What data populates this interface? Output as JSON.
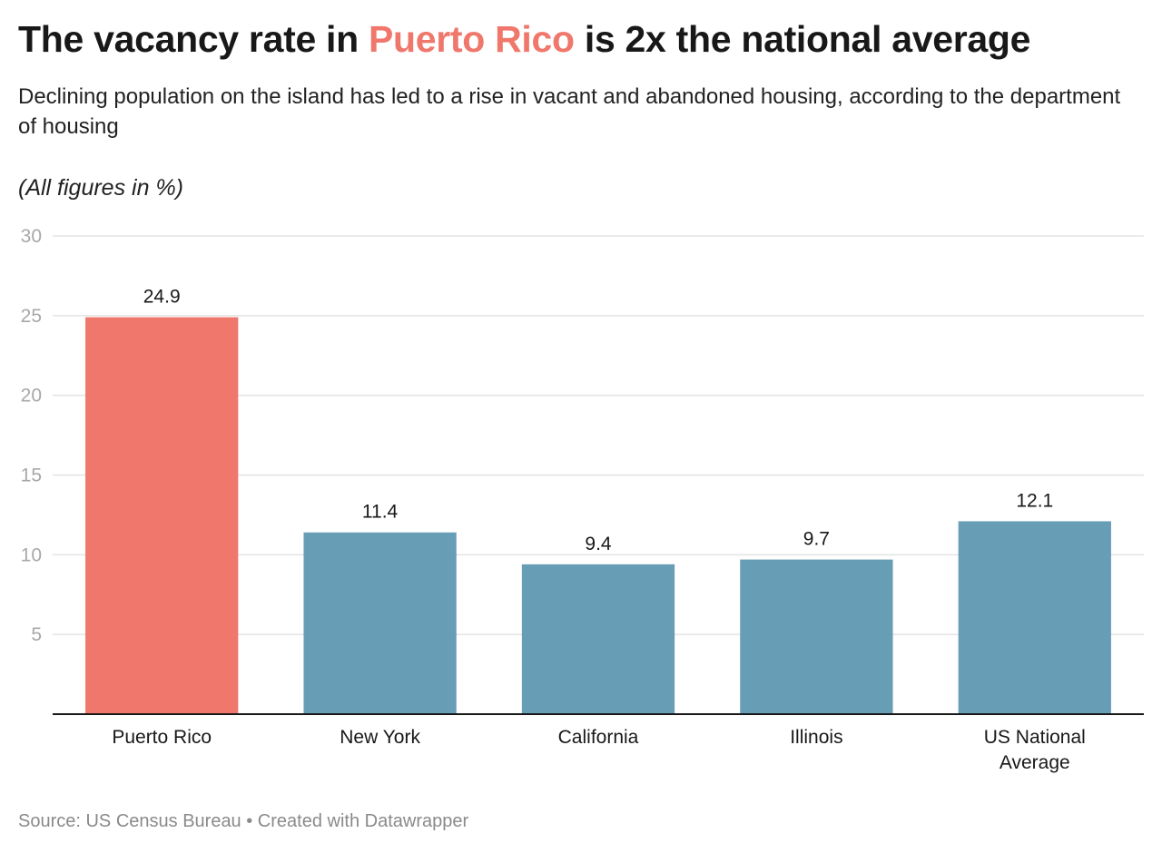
{
  "header": {
    "title_before": "The vacancy rate in ",
    "title_highlight": "Puerto Rico",
    "title_after": " is 2x the national average",
    "subtitle": "Declining population on the island has led to a rise in vacant and abandoned housing, according to the department of housing",
    "note": "(All figures in %)"
  },
  "footer": {
    "text": "Source: US Census Bureau • Created with Datawrapper"
  },
  "colors": {
    "highlight": "#f0776c",
    "default_bar": "#679db5",
    "gridline": "#e3e3e3",
    "axis": "#181818"
  },
  "chart_data": {
    "type": "bar",
    "title": "The vacancy rate in Puerto Rico is 2x the national average",
    "xlabel": "",
    "ylabel": "(All figures in %)",
    "categories": [
      "Puerto Rico",
      "New York",
      "California",
      "Illinois",
      "US National Average"
    ],
    "category_lines": [
      [
        "Puerto Rico"
      ],
      [
        "New York"
      ],
      [
        "California"
      ],
      [
        "Illinois"
      ],
      [
        "US National",
        "Average"
      ]
    ],
    "values": [
      24.9,
      11.4,
      9.4,
      9.7,
      12.1
    ],
    "value_labels": [
      "24.9",
      "11.4",
      "9.4",
      "9.7",
      "12.1"
    ],
    "highlighted": [
      "Puerto Rico"
    ],
    "ylim": [
      0,
      30
    ],
    "yticks": [
      5,
      10,
      15,
      20,
      25,
      30
    ],
    "grid": true,
    "legend": "none"
  }
}
